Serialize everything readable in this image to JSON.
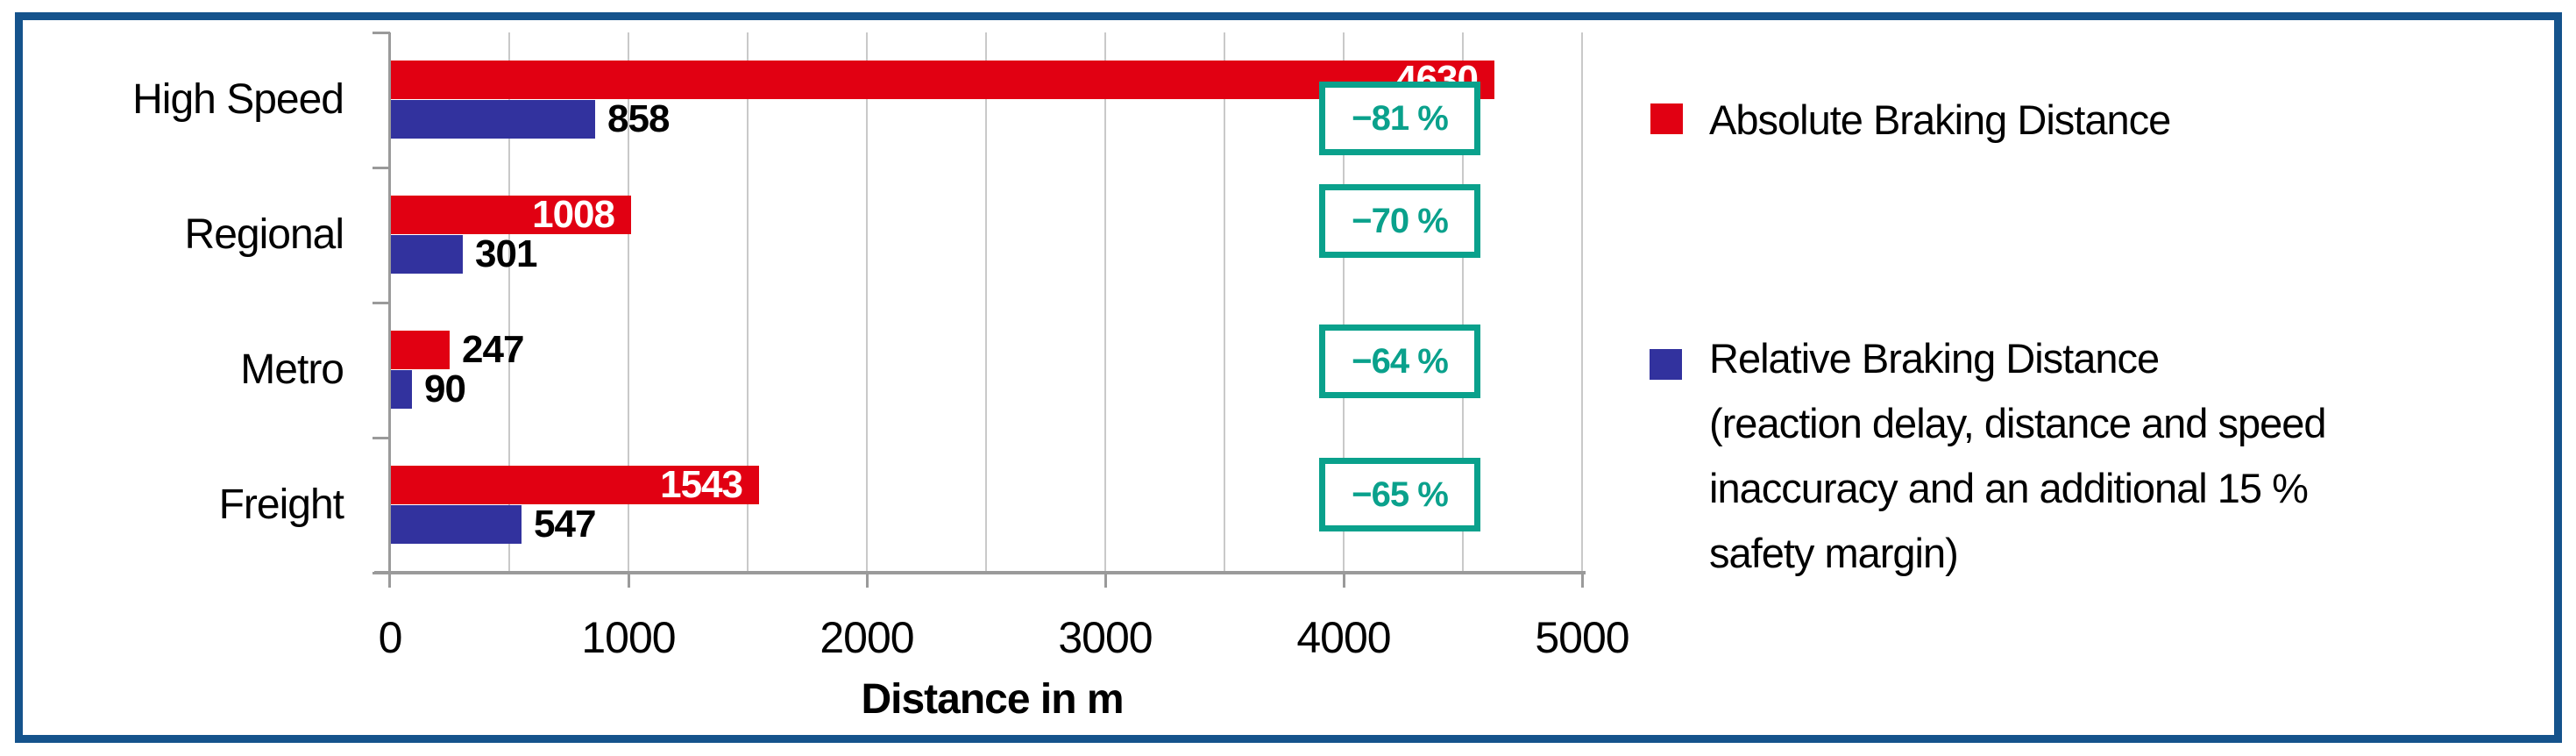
{
  "chart_data": {
    "type": "bar",
    "orientation": "horizontal",
    "categories": [
      "High Speed",
      "Regional",
      "Metro",
      "Freight"
    ],
    "series": [
      {
        "name": "Absolute Braking Distance",
        "color": "#e10012",
        "values": [
          4630,
          1008,
          247,
          1543
        ]
      },
      {
        "name": "Relative Braking Distance (reaction delay, distance and speed inaccuracy and an additional 15 % safety margin)",
        "color": "#32329e",
        "values": [
          858,
          301,
          90,
          547
        ]
      }
    ],
    "value_labels": {
      "absolute": [
        "4630",
        "1008",
        "247",
        "1543"
      ],
      "relative": [
        "858",
        "301",
        "90",
        "547"
      ]
    },
    "reduction_badges": [
      "−81 %",
      "−70 %",
      "−64 %",
      "−65 %"
    ],
    "xlabel": "Distance in m",
    "xlim": [
      0,
      5000
    ],
    "xticks": [
      0,
      1000,
      2000,
      3000,
      4000,
      5000
    ],
    "xtick_labels": [
      "0",
      "1000",
      "2000",
      "3000",
      "4000",
      "5000"
    ],
    "gridline_step": 500,
    "grid": "on",
    "legend_position": "right"
  },
  "legend": {
    "items": [
      {
        "swatch_color": "#e10012",
        "lines": [
          "Absolute Braking Distance"
        ]
      },
      {
        "swatch_color": "#32329e",
        "lines": [
          "Relative Braking Distance",
          "(reaction delay, distance and speed",
          "inaccuracy and an additional 15 %",
          "safety margin)"
        ]
      }
    ]
  },
  "colors": {
    "bar_red": "#e10012",
    "bar_blue": "#32329e",
    "badge_teal": "#0aa18c",
    "frame_blue": "#15538c",
    "gridline_gray": "#c9c9c9",
    "axis_gray": "#9a9a9a",
    "label_white": "#ffffff",
    "text_black": "#000000"
  }
}
